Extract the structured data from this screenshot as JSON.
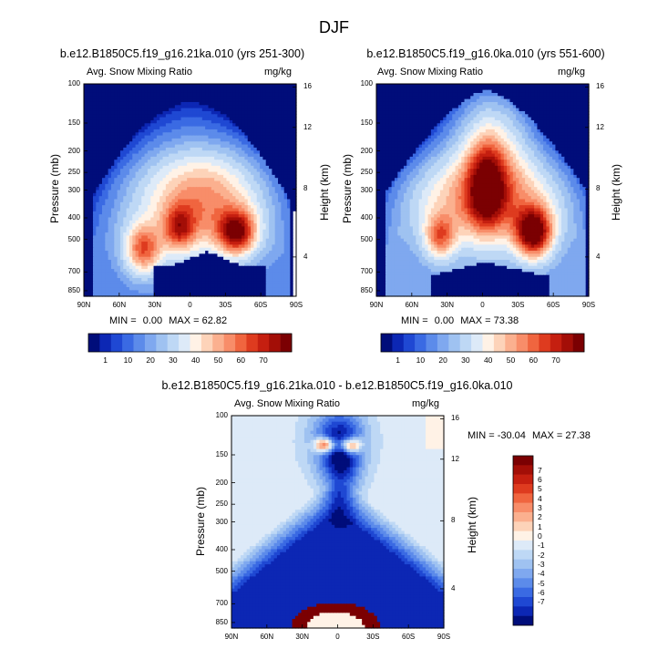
{
  "title": "DJF",
  "colors": {
    "pos9": [
      "#fff2e6",
      "#fdd3b9",
      "#fbb08f",
      "#f88d69",
      "#f0653f",
      "#de3b1f",
      "#c51f10",
      "#a30e07",
      "#7b0002"
    ],
    "neg9": [
      "#ddeaf8",
      "#bed8f5",
      "#9fc2f1",
      "#7fa8ef",
      "#5c8bea",
      "#3a6ae3",
      "#1f48d3",
      "#0c27b4",
      "#000d7a"
    ],
    "seq_scale": [
      "#000d7a",
      "#0c27b4",
      "#1f48d3",
      "#3a6ae3",
      "#5c8bea",
      "#7fa8ef",
      "#9fc2f1",
      "#bed8f5",
      "#ddeaf8",
      "#fff2e6",
      "#fdd3b9",
      "#fbb08f",
      "#f88d69",
      "#f0653f",
      "#de3b1f",
      "#c51f10",
      "#a30e07",
      "#7b0002"
    ]
  },
  "panels": [
    {
      "title": "b.e12.B1850C5.f19_g16.21ka.010 (yrs 251-300)",
      "left_label": "Avg. Snow Mixing Ratio",
      "right_label": "mg/kg",
      "xlabel_ticks": [
        "90N",
        "60N",
        "30N",
        "0",
        "30S",
        "60S",
        "90S"
      ],
      "p_ticks": [
        "100",
        "150",
        "200",
        "250",
        "300",
        "400",
        "500",
        "700",
        "850"
      ],
      "h_ticks": [
        "16",
        "12",
        "8",
        "4"
      ],
      "ylabel": "Pressure (mb)",
      "ylabel_right": "Height (km)",
      "min_label": "MIN =",
      "min_value": "0.00",
      "max_label": "MAX =",
      "max_value": "62.82"
    },
    {
      "title": "b.e12.B1850C5.f19_g16.0ka.010 (yrs 551-600)",
      "left_label": "Avg. Snow Mixing Ratio",
      "right_label": "mg/kg",
      "xlabel_ticks": [
        "90N",
        "60N",
        "30N",
        "0",
        "30S",
        "60S",
        "90S"
      ],
      "p_ticks": [
        "100",
        "150",
        "200",
        "250",
        "300",
        "400",
        "500",
        "700",
        "850"
      ],
      "h_ticks": [
        "16",
        "12",
        "8",
        "4"
      ],
      "ylabel": "Pressure (mb)",
      "ylabel_right": "Height (km)",
      "min_label": "MIN =",
      "min_value": "0.00",
      "max_label": "MAX =",
      "max_value": "73.38"
    },
    {
      "title": "b.e12.B1850C5.f19_g16.21ka.010 - b.e12.B1850C5.f19_g16.0ka.010",
      "left_label": "Avg. Snow Mixing Ratio",
      "right_label": "mg/kg",
      "xlabel_ticks": [
        "90N",
        "60N",
        "30N",
        "0",
        "30S",
        "60S",
        "90S"
      ],
      "p_ticks": [
        "100",
        "150",
        "200",
        "250",
        "300",
        "400",
        "500",
        "700",
        "850"
      ],
      "h_ticks": [
        "16",
        "12",
        "8",
        "4"
      ],
      "ylabel": "Pressure (mb)",
      "ylabel_right": "Height (km)",
      "min_label": "MIN =",
      "min_value": "-30.04",
      "max_label": "MAX =",
      "max_value": "27.38"
    }
  ],
  "colorbar_abs": {
    "labels": [
      "1",
      "10",
      "20",
      "30",
      "40",
      "50",
      "60",
      "70"
    ]
  },
  "colorbar_diff": {
    "labels": [
      "7",
      "6",
      "5",
      "4",
      "3",
      "2",
      "1",
      "0",
      "-1",
      "-2",
      "-3",
      "-4",
      "-5",
      "-6",
      "-7"
    ]
  },
  "chart_data": {
    "type": "heatmap",
    "title": "DJF",
    "variable": "Avg. Snow Mixing Ratio",
    "units": "mg/kg",
    "x": "latitude (90N to 90S)",
    "xticks": [
      "90N",
      "60N",
      "30N",
      "0",
      "30S",
      "60S",
      "90S"
    ],
    "ylabel": "Pressure (mb)",
    "yticks_pressure": [
      100,
      150,
      200,
      250,
      300,
      400,
      500,
      700,
      850
    ],
    "ylabel_right": "Height (km)",
    "yticks_height": [
      16,
      12,
      8,
      4
    ],
    "panels": [
      {
        "name": "b.e12.B1850C5.f19_g16.21ka.010 (yrs 251-300)",
        "min": 0.0,
        "max": 62.82,
        "levels": [
          1,
          10,
          20,
          30,
          40,
          50,
          60,
          70
        ]
      },
      {
        "name": "b.e12.B1850C5.f19_g16.0ka.010 (yrs 551-600)",
        "min": 0.0,
        "max": 73.38,
        "levels": [
          1,
          10,
          20,
          30,
          40,
          50,
          60,
          70
        ]
      },
      {
        "name": "b.e12.B1850C5.f19_g16.21ka.010 - b.e12.B1850C5.f19_g16.0ka.010",
        "min": -30.04,
        "max": 27.38,
        "levels": [
          -7,
          -6,
          -5,
          -4,
          -3,
          -2,
          -1,
          0,
          1,
          2,
          3,
          4,
          5,
          6,
          7
        ]
      }
    ]
  }
}
